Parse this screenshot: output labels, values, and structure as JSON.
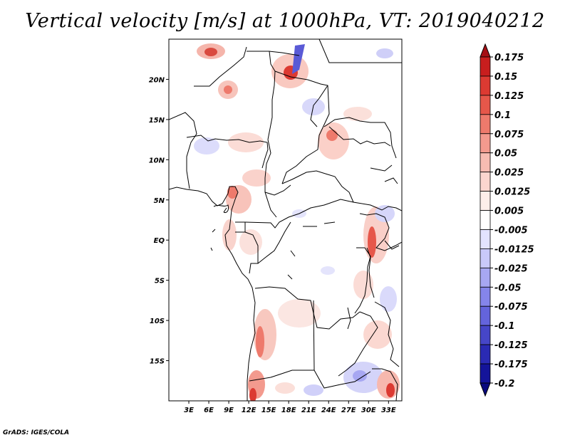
{
  "title": "Vertical velocity [m/s] at 1000hPa, VT: 2019040212",
  "credit": "GrADS: IGES/COLA",
  "map": {
    "lon_range": [
      0,
      35
    ],
    "lat_range": [
      -20,
      25
    ],
    "lon_ticks": [
      "3E",
      "6E",
      "9E",
      "12E",
      "15E",
      "18E",
      "21E",
      "24E",
      "27E",
      "30E",
      "33E"
    ],
    "lon_tick_values": [
      3,
      6,
      9,
      12,
      15,
      18,
      21,
      24,
      27,
      30,
      33
    ],
    "lat_ticks": [
      "20N",
      "15N",
      "10N",
      "5N",
      "EQ",
      "5S",
      "10S",
      "15S"
    ],
    "lat_tick_values": [
      20,
      15,
      10,
      5,
      0,
      -5,
      -10,
      -15
    ]
  },
  "colorbar": {
    "labels": [
      "0.175",
      "0.15",
      "0.125",
      "0.1",
      "0.075",
      "0.05",
      "0.025",
      "0.0125",
      "0.005",
      "-0.005",
      "-0.0125",
      "-0.025",
      "-0.05",
      "-0.075",
      "-0.1",
      "-0.125",
      "-0.175",
      "-0.2"
    ],
    "colors": [
      "#a50f15",
      "#c81e1e",
      "#dc3a32",
      "#e6574a",
      "#ee7a6c",
      "#f39a8e",
      "#f7bcb2",
      "#fbd6cf",
      "#fdeeea",
      "#ffffff",
      "#e3e3ff",
      "#c9c9fa",
      "#a7a7f2",
      "#8585ea",
      "#6464dc",
      "#4646c8",
      "#2a2ab4",
      "#14149a",
      "#0a0a7e"
    ]
  }
}
